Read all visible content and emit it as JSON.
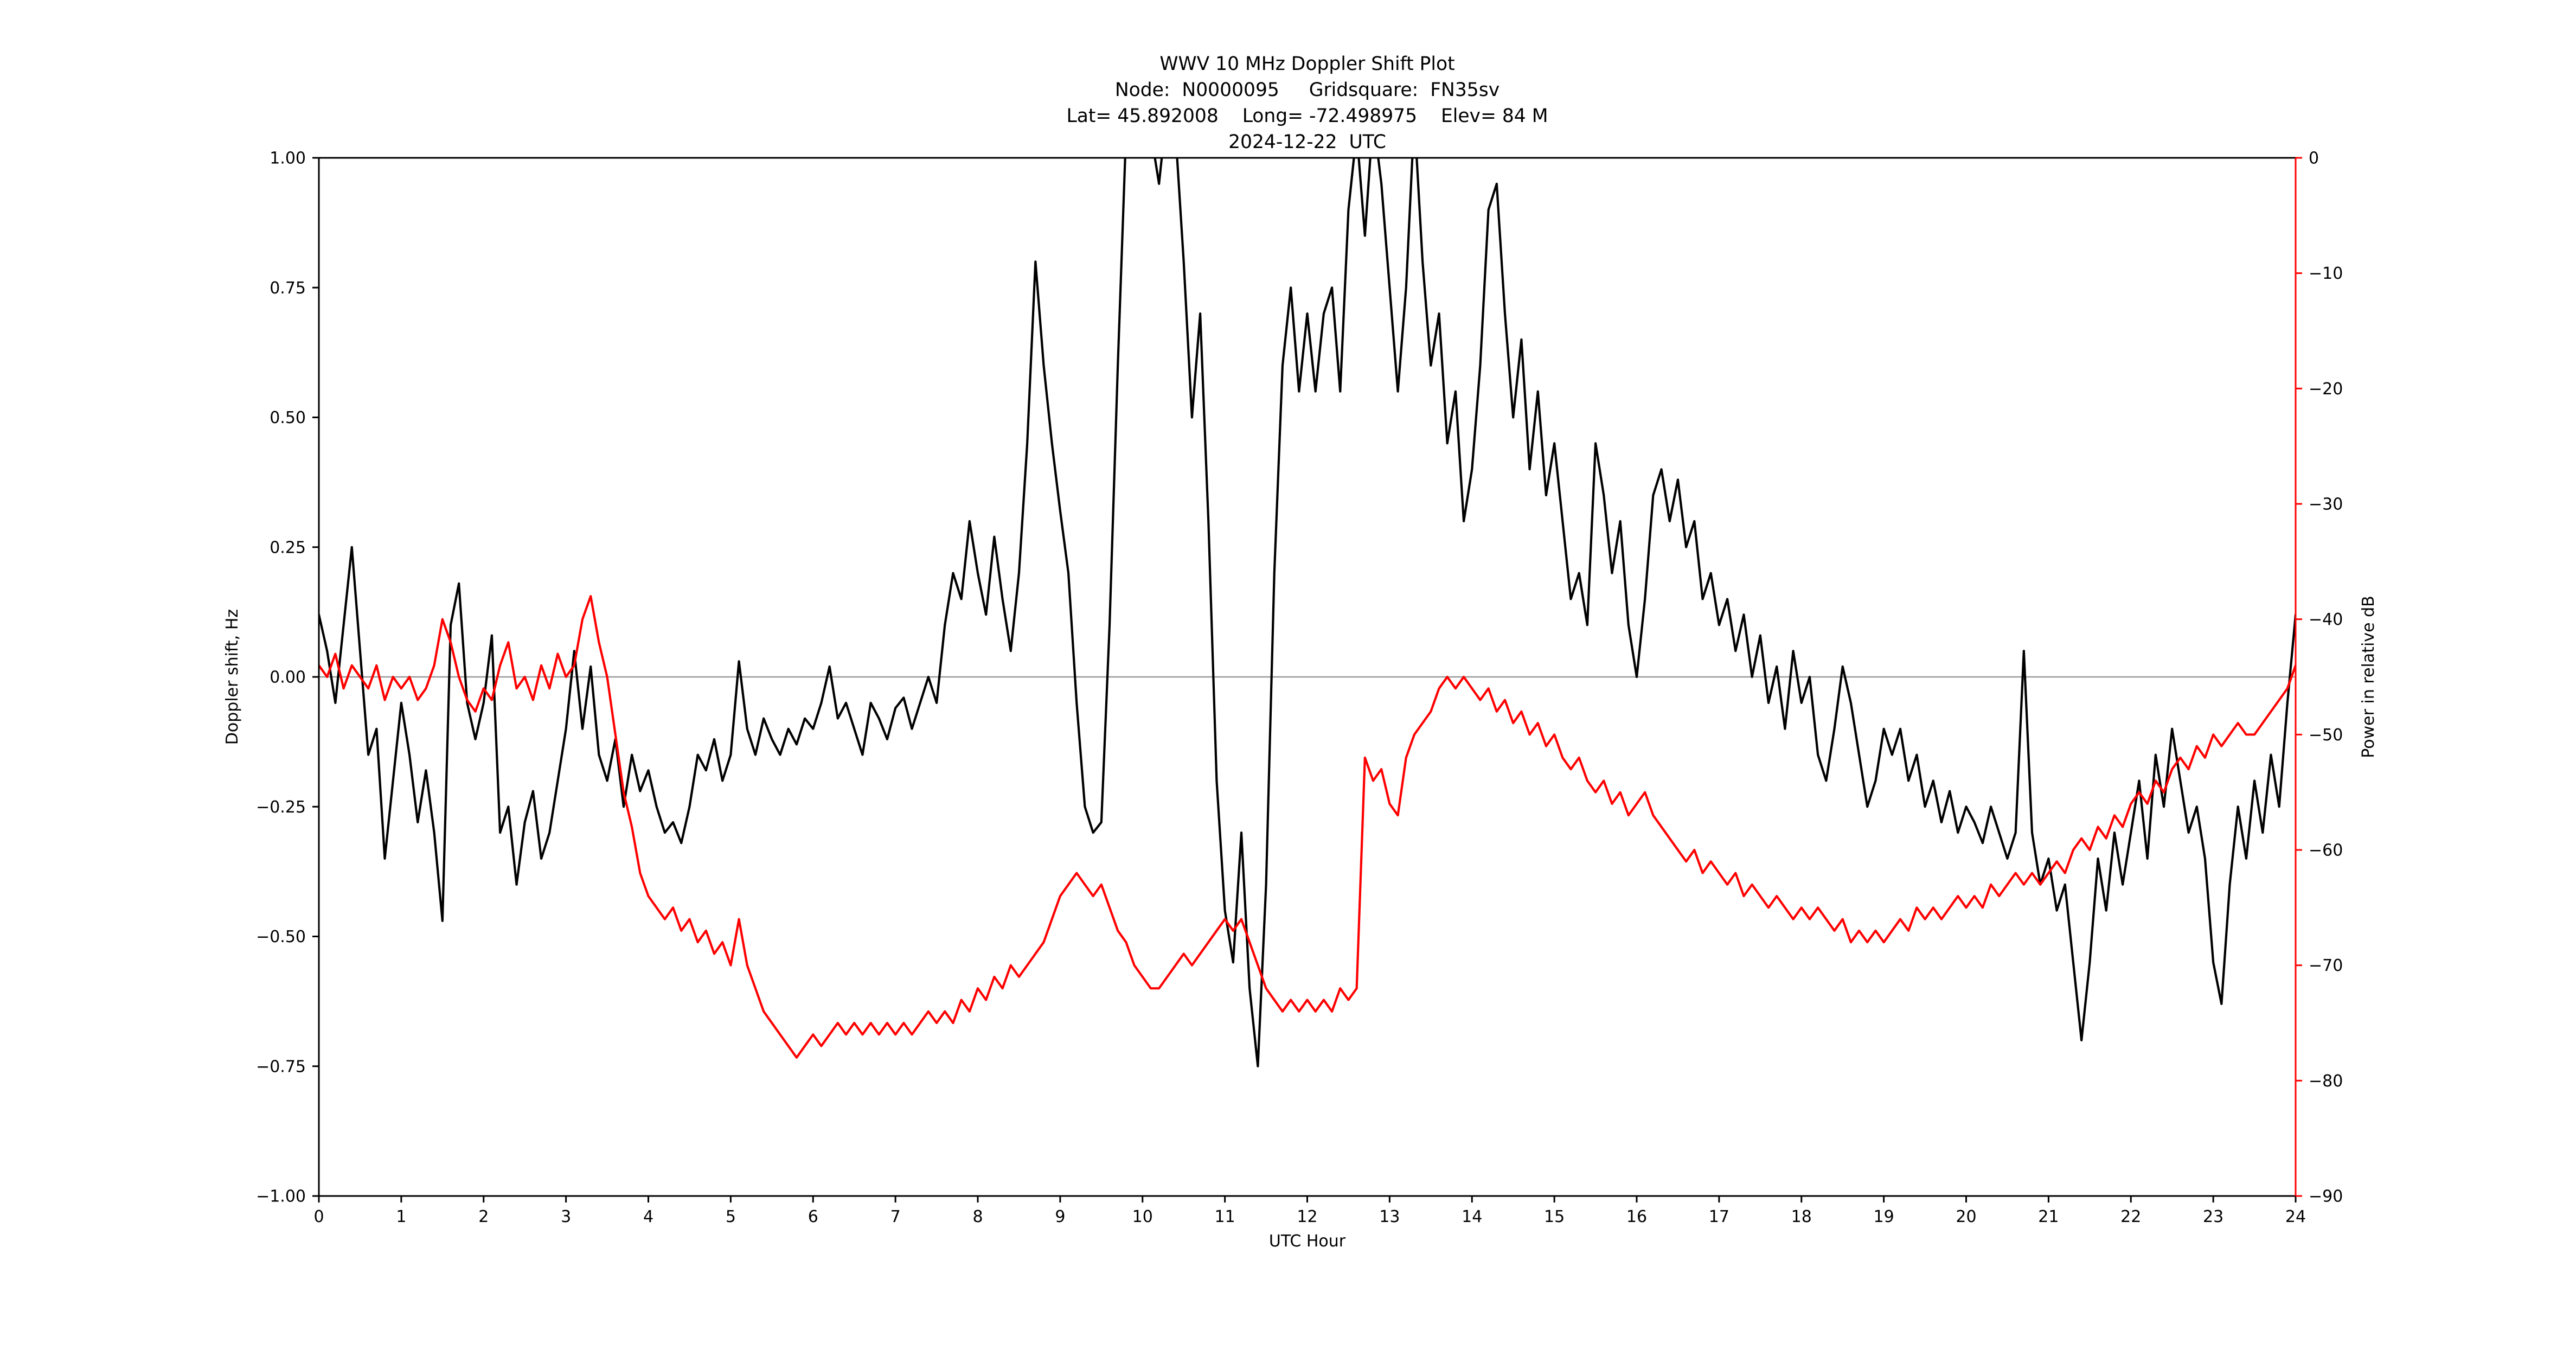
{
  "colors": {
    "doppler_line": "#000000",
    "power_line": "#ff0000",
    "zero_line": "#999999",
    "axis": "#000000",
    "right_axis": "#ff0000",
    "background": "#ffffff"
  },
  "chart_data": {
    "type": "line",
    "title": "WWV 10 MHz Doppler Shift Plot",
    "subtitle_lines": [
      "Node:  N0000095     Gridsquare:  FN35sv",
      "Lat= 45.892008    Long= -72.498975    Elev= 84 M",
      "2024-12-22  UTC"
    ],
    "xlabel": "UTC Hour",
    "ylabel_left": "Doppler shift, Hz",
    "ylabel_right": "Power in relative dB",
    "xlim": [
      0,
      24
    ],
    "ylim_left": [
      -1.0,
      1.0
    ],
    "ylim_right": [
      -90,
      0
    ],
    "grid": false,
    "zero_line": true,
    "legend": "none",
    "x_ticks": [
      0,
      1,
      2,
      3,
      4,
      5,
      6,
      7,
      8,
      9,
      10,
      11,
      12,
      13,
      14,
      15,
      16,
      17,
      18,
      19,
      20,
      21,
      22,
      23,
      24
    ],
    "x_tick_labels": [
      "0",
      "1",
      "2",
      "3",
      "4",
      "5",
      "6",
      "7",
      "8",
      "9",
      "10",
      "11",
      "12",
      "13",
      "14",
      "15",
      "16",
      "17",
      "18",
      "19",
      "20",
      "21",
      "22",
      "23",
      "24"
    ],
    "y_ticks_left": [
      1.0,
      0.75,
      0.5,
      0.25,
      0.0,
      -0.25,
      -0.5,
      -0.75,
      -1.0
    ],
    "y_tick_labels_left": [
      "1.00",
      "0.75",
      "0.50",
      "0.25",
      "0.00",
      "−0.25",
      "−0.50",
      "−0.75",
      "−1.00"
    ],
    "y_ticks_right": [
      0,
      -10,
      -20,
      -30,
      -40,
      -50,
      -60,
      -70,
      -80,
      -90
    ],
    "y_tick_labels_right": [
      "0",
      "−10",
      "−20",
      "−30",
      "−40",
      "−50",
      "−60",
      "−70",
      "−80",
      "−90"
    ],
    "x_start": 0,
    "x_step": 0.1,
    "series": [
      {
        "name": "Doppler shift",
        "axis": "left",
        "color": "#000000",
        "values": [
          0.12,
          0.05,
          -0.05,
          0.1,
          0.25,
          0.05,
          -0.15,
          -0.1,
          -0.35,
          -0.2,
          -0.05,
          -0.15,
          -0.28,
          -0.18,
          -0.3,
          -0.47,
          0.1,
          0.18,
          -0.05,
          -0.12,
          -0.05,
          0.08,
          -0.3,
          -0.25,
          -0.4,
          -0.28,
          -0.22,
          -0.35,
          -0.3,
          -0.2,
          -0.1,
          0.05,
          -0.1,
          0.02,
          -0.15,
          -0.2,
          -0.12,
          -0.25,
          -0.15,
          -0.22,
          -0.18,
          -0.25,
          -0.3,
          -0.28,
          -0.32,
          -0.25,
          -0.15,
          -0.18,
          -0.12,
          -0.2,
          -0.15,
          0.03,
          -0.1,
          -0.15,
          -0.08,
          -0.12,
          -0.15,
          -0.1,
          -0.13,
          -0.08,
          -0.1,
          -0.05,
          0.02,
          -0.08,
          -0.05,
          -0.1,
          -0.15,
          -0.05,
          -0.08,
          -0.12,
          -0.06,
          -0.04,
          -0.1,
          -0.05,
          0.0,
          -0.05,
          0.1,
          0.2,
          0.15,
          0.3,
          0.2,
          0.12,
          0.27,
          0.15,
          0.05,
          0.2,
          0.45,
          0.8,
          0.6,
          0.45,
          0.32,
          0.2,
          -0.05,
          -0.25,
          -0.3,
          -0.28,
          0.1,
          0.6,
          1.05,
          1.1,
          1.1,
          1.05,
          0.95,
          1.1,
          1.05,
          0.8,
          0.5,
          0.7,
          0.3,
          -0.2,
          -0.45,
          -0.55,
          -0.3,
          -0.6,
          -0.75,
          -0.4,
          0.2,
          0.6,
          0.75,
          0.55,
          0.7,
          0.55,
          0.7,
          0.75,
          0.55,
          0.9,
          1.05,
          0.85,
          1.08,
          0.95,
          0.75,
          0.55,
          0.75,
          1.08,
          0.8,
          0.6,
          0.7,
          0.45,
          0.55,
          0.3,
          0.4,
          0.6,
          0.9,
          0.95,
          0.7,
          0.5,
          0.65,
          0.4,
          0.55,
          0.35,
          0.45,
          0.3,
          0.15,
          0.2,
          0.1,
          0.45,
          0.35,
          0.2,
          0.3,
          0.1,
          0.0,
          0.15,
          0.35,
          0.4,
          0.3,
          0.38,
          0.25,
          0.3,
          0.15,
          0.2,
          0.1,
          0.15,
          0.05,
          0.12,
          0.0,
          0.08,
          -0.05,
          0.02,
          -0.1,
          0.05,
          -0.05,
          0.0,
          -0.15,
          -0.2,
          -0.1,
          0.02,
          -0.05,
          -0.15,
          -0.25,
          -0.2,
          -0.1,
          -0.15,
          -0.1,
          -0.2,
          -0.15,
          -0.25,
          -0.2,
          -0.28,
          -0.22,
          -0.3,
          -0.25,
          -0.28,
          -0.32,
          -0.25,
          -0.3,
          -0.35,
          -0.3,
          0.05,
          -0.3,
          -0.4,
          -0.35,
          -0.45,
          -0.4,
          -0.55,
          -0.7,
          -0.55,
          -0.35,
          -0.45,
          -0.3,
          -0.4,
          -0.3,
          -0.2,
          -0.35,
          -0.15,
          -0.25,
          -0.1,
          -0.2,
          -0.3,
          -0.25,
          -0.35,
          -0.55,
          -0.63,
          -0.4,
          -0.25,
          -0.35,
          -0.2,
          -0.3,
          -0.15,
          -0.25,
          -0.05,
          0.12
        ]
      },
      {
        "name": "Power",
        "axis": "right",
        "color": "#ff0000",
        "values": [
          -44,
          -45,
          -43,
          -46,
          -44,
          -45,
          -46,
          -44,
          -47,
          -45,
          -46,
          -45,
          -47,
          -46,
          -44,
          -40,
          -42,
          -45,
          -47,
          -48,
          -46,
          -47,
          -44,
          -42,
          -46,
          -45,
          -47,
          -44,
          -46,
          -43,
          -45,
          -44,
          -40,
          -38,
          -42,
          -45,
          -50,
          -55,
          -58,
          -62,
          -64,
          -65,
          -66,
          -65,
          -67,
          -66,
          -68,
          -67,
          -69,
          -68,
          -70,
          -66,
          -70,
          -72,
          -74,
          -75,
          -76,
          -77,
          -78,
          -77,
          -76,
          -77,
          -76,
          -75,
          -76,
          -75,
          -76,
          -75,
          -76,
          -75,
          -76,
          -75,
          -76,
          -75,
          -74,
          -75,
          -74,
          -75,
          -73,
          -74,
          -72,
          -73,
          -71,
          -72,
          -70,
          -71,
          -70,
          -69,
          -68,
          -66,
          -64,
          -63,
          -62,
          -63,
          -64,
          -63,
          -65,
          -67,
          -68,
          -70,
          -71,
          -72,
          -72,
          -71,
          -70,
          -69,
          -70,
          -69,
          -68,
          -67,
          -66,
          -67,
          -66,
          -68,
          -70,
          -72,
          -73,
          -74,
          -73,
          -74,
          -73,
          -74,
          -73,
          -74,
          -72,
          -73,
          -72,
          -52,
          -54,
          -53,
          -56,
          -57,
          -52,
          -50,
          -49,
          -48,
          -46,
          -45,
          -46,
          -45,
          -46,
          -47,
          -46,
          -48,
          -47,
          -49,
          -48,
          -50,
          -49,
          -51,
          -50,
          -52,
          -53,
          -52,
          -54,
          -55,
          -54,
          -56,
          -55,
          -57,
          -56,
          -55,
          -57,
          -58,
          -59,
          -60,
          -61,
          -60,
          -62,
          -61,
          -62,
          -63,
          -62,
          -64,
          -63,
          -64,
          -65,
          -64,
          -65,
          -66,
          -65,
          -66,
          -65,
          -66,
          -67,
          -66,
          -68,
          -67,
          -68,
          -67,
          -68,
          -67,
          -66,
          -67,
          -65,
          -66,
          -65,
          -66,
          -65,
          -64,
          -65,
          -64,
          -65,
          -63,
          -64,
          -63,
          -62,
          -63,
          -62,
          -63,
          -62,
          -61,
          -62,
          -60,
          -59,
          -60,
          -58,
          -59,
          -57,
          -58,
          -56,
          -55,
          -56,
          -54,
          -55,
          -53,
          -52,
          -53,
          -51,
          -52,
          -50,
          -51,
          -50,
          -49,
          -50,
          -50,
          -49,
          -48,
          -47,
          -46,
          -44
        ]
      }
    ]
  }
}
